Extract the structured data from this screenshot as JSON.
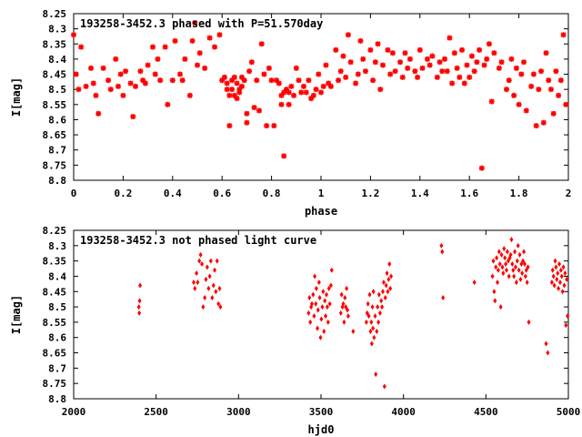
{
  "colors": {
    "marker": "#ff0000",
    "axis": "#000000",
    "background": "#ffffff"
  },
  "chart_data": [
    {
      "id": "phased",
      "type": "scatter",
      "title": "193258-3452.3 phased with P=51.570day",
      "xlabel": "phase",
      "ylabel": "I[mag]",
      "xlim": [
        0,
        2
      ],
      "ylim": [
        8.8,
        8.25
      ],
      "y_inverted": true,
      "grid": false,
      "xticks": [
        "0",
        "0.2",
        "0.4",
        "0.6",
        "0.8",
        "1",
        "1.2",
        "1.4",
        "1.6",
        "1.8",
        "2"
      ],
      "yticks": [
        "8.25",
        "8.3",
        "8.35",
        "8.4",
        "8.45",
        "8.5",
        "8.55",
        "8.6",
        "8.65",
        "8.7",
        "8.75",
        "8.8"
      ],
      "marker": "star",
      "points": [
        [
          0.0,
          8.32
        ],
        [
          0.01,
          8.45
        ],
        [
          0.02,
          8.5
        ],
        [
          0.03,
          8.36
        ],
        [
          0.05,
          8.49
        ],
        [
          0.07,
          8.43
        ],
        [
          0.08,
          8.48
        ],
        [
          0.09,
          8.52
        ],
        [
          0.1,
          8.58
        ],
        [
          0.12,
          8.43
        ],
        [
          0.14,
          8.47
        ],
        [
          0.15,
          8.5
        ],
        [
          0.17,
          8.4
        ],
        [
          0.18,
          8.49
        ],
        [
          0.19,
          8.45
        ],
        [
          0.2,
          8.52
        ],
        [
          0.21,
          8.44
        ],
        [
          0.23,
          8.48
        ],
        [
          0.24,
          8.59
        ],
        [
          0.25,
          8.49
        ],
        [
          0.27,
          8.44
        ],
        [
          0.28,
          8.47
        ],
        [
          0.29,
          8.48
        ],
        [
          0.3,
          8.42
        ],
        [
          0.32,
          8.36
        ],
        [
          0.33,
          8.45
        ],
        [
          0.34,
          8.4
        ],
        [
          0.35,
          8.47
        ],
        [
          0.37,
          8.36
        ],
        [
          0.38,
          8.55
        ],
        [
          0.4,
          8.47
        ],
        [
          0.41,
          8.34
        ],
        [
          0.43,
          8.45
        ],
        [
          0.44,
          8.47
        ],
        [
          0.45,
          8.4
        ],
        [
          0.47,
          8.52
        ],
        [
          0.48,
          8.34
        ],
        [
          0.49,
          8.28
        ],
        [
          0.5,
          8.42
        ],
        [
          0.51,
          8.38
        ],
        [
          0.53,
          8.43
        ],
        [
          0.55,
          8.33
        ],
        [
          0.57,
          8.36
        ],
        [
          0.59,
          8.32
        ],
        [
          0.6,
          8.47
        ],
        [
          0.61,
          8.46
        ],
        [
          0.62,
          8.5
        ],
        [
          0.62,
          8.48
        ],
        [
          0.63,
          8.62
        ],
        [
          0.63,
          8.52
        ],
        [
          0.64,
          8.47
        ],
        [
          0.64,
          8.5
        ],
        [
          0.65,
          8.46
        ],
        [
          0.65,
          8.52
        ],
        [
          0.66,
          8.48
        ],
        [
          0.66,
          8.53
        ],
        [
          0.67,
          8.5
        ],
        [
          0.67,
          8.51
        ],
        [
          0.68,
          8.46
        ],
        [
          0.68,
          8.49
        ],
        [
          0.69,
          8.47
        ],
        [
          0.7,
          8.58
        ],
        [
          0.7,
          8.61
        ],
        [
          0.71,
          8.44
        ],
        [
          0.72,
          8.41
        ],
        [
          0.73,
          8.56
        ],
        [
          0.74,
          8.47
        ],
        [
          0.75,
          8.57
        ],
        [
          0.76,
          8.35
        ],
        [
          0.77,
          8.45
        ],
        [
          0.78,
          8.62
        ],
        [
          0.79,
          8.43
        ],
        [
          0.8,
          8.47
        ],
        [
          0.81,
          8.62
        ],
        [
          0.82,
          8.47
        ],
        [
          0.83,
          8.48
        ],
        [
          0.84,
          8.52
        ],
        [
          0.84,
          8.55
        ],
        [
          0.85,
          8.72
        ],
        [
          0.85,
          8.51
        ],
        [
          0.86,
          8.5
        ],
        [
          0.87,
          8.51
        ],
        [
          0.87,
          8.55
        ],
        [
          0.88,
          8.49
        ],
        [
          0.89,
          8.52
        ],
        [
          0.9,
          8.43
        ],
        [
          0.91,
          8.47
        ],
        [
          0.92,
          8.51
        ],
        [
          0.93,
          8.49
        ],
        [
          0.94,
          8.51
        ],
        [
          0.95,
          8.47
        ],
        [
          0.96,
          8.53
        ],
        [
          0.97,
          8.52
        ],
        [
          0.98,
          8.5
        ],
        [
          0.99,
          8.45
        ],
        [
          1.0,
          8.51
        ],
        [
          1.01,
          8.49
        ],
        [
          1.02,
          8.42
        ],
        [
          1.03,
          8.48
        ],
        [
          1.04,
          8.49
        ],
        [
          1.06,
          8.37
        ],
        [
          1.07,
          8.47
        ],
        [
          1.08,
          8.44
        ],
        [
          1.09,
          8.39
        ],
        [
          1.1,
          8.46
        ],
        [
          1.11,
          8.32
        ],
        [
          1.12,
          8.41
        ],
        [
          1.14,
          8.48
        ],
        [
          1.15,
          8.45
        ],
        [
          1.16,
          8.34
        ],
        [
          1.17,
          8.4
        ],
        [
          1.18,
          8.44
        ],
        [
          1.2,
          8.37
        ],
        [
          1.21,
          8.47
        ],
        [
          1.22,
          8.41
        ],
        [
          1.23,
          8.35
        ],
        [
          1.24,
          8.5
        ],
        [
          1.25,
          8.42
        ],
        [
          1.27,
          8.37
        ],
        [
          1.28,
          8.45
        ],
        [
          1.29,
          8.38
        ],
        [
          1.3,
          8.44
        ],
        [
          1.32,
          8.41
        ],
        [
          1.33,
          8.46
        ],
        [
          1.34,
          8.38
        ],
        [
          1.35,
          8.43
        ],
        [
          1.36,
          8.4
        ],
        [
          1.38,
          8.44
        ],
        [
          1.39,
          8.46
        ],
        [
          1.4,
          8.37
        ],
        [
          1.41,
          8.43
        ],
        [
          1.43,
          8.4
        ],
        [
          1.44,
          8.42
        ],
        [
          1.45,
          8.39
        ],
        [
          1.47,
          8.46
        ],
        [
          1.48,
          8.41
        ],
        [
          1.49,
          8.44
        ],
        [
          1.5,
          8.4
        ],
        [
          1.51,
          8.44
        ],
        [
          1.52,
          8.33
        ],
        [
          1.53,
          8.48
        ],
        [
          1.54,
          8.38
        ],
        [
          1.55,
          8.43
        ],
        [
          1.56,
          8.46
        ],
        [
          1.57,
          8.37
        ],
        [
          1.58,
          8.48
        ],
        [
          1.59,
          8.42
        ],
        [
          1.6,
          8.46
        ],
        [
          1.61,
          8.39
        ],
        [
          1.62,
          8.44
        ],
        [
          1.63,
          8.41
        ],
        [
          1.64,
          8.37
        ],
        [
          1.65,
          8.76
        ],
        [
          1.66,
          8.42
        ],
        [
          1.67,
          8.4
        ],
        [
          1.68,
          8.35
        ],
        [
          1.69,
          8.54
        ],
        [
          1.7,
          8.38
        ],
        [
          1.72,
          8.43
        ],
        [
          1.73,
          8.41
        ],
        [
          1.75,
          8.5
        ],
        [
          1.76,
          8.47
        ],
        [
          1.77,
          8.4
        ],
        [
          1.78,
          8.52
        ],
        [
          1.79,
          8.43
        ],
        [
          1.8,
          8.55
        ],
        [
          1.81,
          8.45
        ],
        [
          1.82,
          8.41
        ],
        [
          1.83,
          8.57
        ],
        [
          1.85,
          8.49
        ],
        [
          1.86,
          8.45
        ],
        [
          1.87,
          8.62
        ],
        [
          1.88,
          8.5
        ],
        [
          1.89,
          8.44
        ],
        [
          1.9,
          8.61
        ],
        [
          1.91,
          8.38
        ],
        [
          1.92,
          8.47
        ],
        [
          1.93,
          8.5
        ],
        [
          1.94,
          8.58
        ],
        [
          1.95,
          8.44
        ],
        [
          1.96,
          8.52
        ],
        [
          1.97,
          8.47
        ],
        [
          1.98,
          8.32
        ],
        [
          1.99,
          8.55
        ]
      ]
    },
    {
      "id": "unphased",
      "type": "scatter",
      "title": "193258-3452.3 not phased light curve",
      "xlabel": "hjd0",
      "ylabel": "I[mag]",
      "xlim": [
        2000,
        5000
      ],
      "ylim": [
        8.8,
        8.25
      ],
      "y_inverted": true,
      "grid": false,
      "xticks": [
        "2000",
        "2500",
        "3000",
        "3500",
        "4000",
        "4500",
        "5000"
      ],
      "yticks": [
        "8.25",
        "8.3",
        "8.35",
        "8.4",
        "8.45",
        "8.5",
        "8.55",
        "8.6",
        "8.65",
        "8.7",
        "8.75",
        "8.8"
      ],
      "marker": "diamond",
      "points": [
        [
          2395,
          8.5
        ],
        [
          2398,
          8.52
        ],
        [
          2400,
          8.48
        ],
        [
          2403,
          8.43
        ],
        [
          2728,
          8.42
        ],
        [
          2735,
          8.44
        ],
        [
          2745,
          8.39
        ],
        [
          2752,
          8.42
        ],
        [
          2762,
          8.35
        ],
        [
          2770,
          8.33
        ],
        [
          2778,
          8.36
        ],
        [
          2785,
          8.5
        ],
        [
          2795,
          8.47
        ],
        [
          2802,
          8.41
        ],
        [
          2810,
          8.37
        ],
        [
          2818,
          8.44
        ],
        [
          2825,
          8.4
        ],
        [
          2832,
          8.35
        ],
        [
          2840,
          8.47
        ],
        [
          2848,
          8.43
        ],
        [
          2855,
          8.38
        ],
        [
          2862,
          8.45
        ],
        [
          2870,
          8.35
        ],
        [
          2878,
          8.49
        ],
        [
          2885,
          8.44
        ],
        [
          2890,
          8.5
        ],
        [
          3425,
          8.52
        ],
        [
          3430,
          8.47
        ],
        [
          3435,
          8.55
        ],
        [
          3440,
          8.5
        ],
        [
          3445,
          8.49
        ],
        [
          3452,
          8.46
        ],
        [
          3458,
          8.53
        ],
        [
          3462,
          8.4
        ],
        [
          3468,
          8.49
        ],
        [
          3472,
          8.44
        ],
        [
          3478,
          8.57
        ],
        [
          3482,
          8.51
        ],
        [
          3488,
          8.42
        ],
        [
          3492,
          8.47
        ],
        [
          3497,
          8.6
        ],
        [
          3502,
          8.54
        ],
        [
          3508,
          8.5
        ],
        [
          3513,
          8.45
        ],
        [
          3518,
          8.58
        ],
        [
          3523,
          8.48
        ],
        [
          3528,
          8.53
        ],
        [
          3533,
          8.46
        ],
        [
          3538,
          8.5
        ],
        [
          3543,
          8.55
        ],
        [
          3548,
          8.44
        ],
        [
          3553,
          8.49
        ],
        [
          3560,
          8.43
        ],
        [
          3565,
          8.38
        ],
        [
          3620,
          8.52
        ],
        [
          3625,
          8.46
        ],
        [
          3630,
          8.5
        ],
        [
          3635,
          8.49
        ],
        [
          3640,
          8.55
        ],
        [
          3645,
          8.47
        ],
        [
          3650,
          8.5
        ],
        [
          3655,
          8.44
        ],
        [
          3660,
          8.51
        ],
        [
          3665,
          8.53
        ],
        [
          3695,
          8.58
        ],
        [
          3775,
          8.55
        ],
        [
          3780,
          8.52
        ],
        [
          3785,
          8.49
        ],
        [
          3790,
          8.53
        ],
        [
          3795,
          8.46
        ],
        [
          3800,
          8.58
        ],
        [
          3805,
          8.55
        ],
        [
          3808,
          8.62
        ],
        [
          3812,
          8.5
        ],
        [
          3815,
          8.57
        ],
        [
          3818,
          8.45
        ],
        [
          3822,
          8.6
        ],
        [
          3828,
          8.53
        ],
        [
          3832,
          8.72
        ],
        [
          3838,
          8.58
        ],
        [
          3843,
          8.5
        ],
        [
          3848,
          8.55
        ],
        [
          3852,
          8.46
        ],
        [
          3858,
          8.52
        ],
        [
          3865,
          8.48
        ],
        [
          3870,
          8.5
        ],
        [
          3875,
          8.45
        ],
        [
          3880,
          8.42
        ],
        [
          3885,
          8.76
        ],
        [
          3890,
          8.47
        ],
        [
          3895,
          8.43
        ],
        [
          3900,
          8.39
        ],
        [
          3905,
          8.45
        ],
        [
          3910,
          8.41
        ],
        [
          3915,
          8.36
        ],
        [
          3920,
          8.44
        ],
        [
          3925,
          8.4
        ],
        [
          4230,
          8.3
        ],
        [
          4235,
          8.32
        ],
        [
          4240,
          8.47
        ],
        [
          4430,
          8.42
        ],
        [
          4540,
          8.4
        ],
        [
          4545,
          8.35
        ],
        [
          4550,
          8.45
        ],
        [
          4555,
          8.48
        ],
        [
          4560,
          8.37
        ],
        [
          4565,
          8.34
        ],
        [
          4570,
          8.42
        ],
        [
          4575,
          8.38
        ],
        [
          4580,
          8.32
        ],
        [
          4585,
          8.36
        ],
        [
          4590,
          8.5
        ],
        [
          4595,
          8.33
        ],
        [
          4600,
          8.37
        ],
        [
          4605,
          8.39
        ],
        [
          4610,
          8.31
        ],
        [
          4615,
          8.34
        ],
        [
          4620,
          8.36
        ],
        [
          4625,
          8.38
        ],
        [
          4630,
          8.32
        ],
        [
          4635,
          8.35
        ],
        [
          4640,
          8.4
        ],
        [
          4645,
          8.34
        ],
        [
          4650,
          8.33
        ],
        [
          4655,
          8.28
        ],
        [
          4660,
          8.36
        ],
        [
          4665,
          8.38
        ],
        [
          4670,
          8.4
        ],
        [
          4675,
          8.32
        ],
        [
          4680,
          8.37
        ],
        [
          4685,
          8.42
        ],
        [
          4690,
          8.35
        ],
        [
          4695,
          8.3
        ],
        [
          4700,
          8.38
        ],
        [
          4705,
          8.33
        ],
        [
          4710,
          8.41
        ],
        [
          4715,
          8.36
        ],
        [
          4720,
          8.39
        ],
        [
          4725,
          8.35
        ],
        [
          4730,
          8.32
        ],
        [
          4735,
          8.36
        ],
        [
          4740,
          8.4
        ],
        [
          4745,
          8.38
        ],
        [
          4750,
          8.42
        ],
        [
          4755,
          8.37
        ],
        [
          4760,
          8.55
        ],
        [
          4865,
          8.62
        ],
        [
          4875,
          8.65
        ],
        [
          4900,
          8.42
        ],
        [
          4905,
          8.38
        ],
        [
          4910,
          8.4
        ],
        [
          4915,
          8.43
        ],
        [
          4920,
          8.35
        ],
        [
          4925,
          8.37
        ],
        [
          4930,
          8.41
        ],
        [
          4935,
          8.39
        ],
        [
          4940,
          8.44
        ],
        [
          4945,
          8.36
        ],
        [
          4950,
          8.42
        ],
        [
          4955,
          8.38
        ],
        [
          4960,
          8.4
        ],
        [
          4965,
          8.45
        ],
        [
          4970,
          8.37
        ],
        [
          4975,
          8.43
        ],
        [
          4980,
          8.39
        ],
        [
          4985,
          8.56
        ],
        [
          4990,
          8.41
        ],
        [
          4995,
          8.53
        ]
      ]
    }
  ]
}
